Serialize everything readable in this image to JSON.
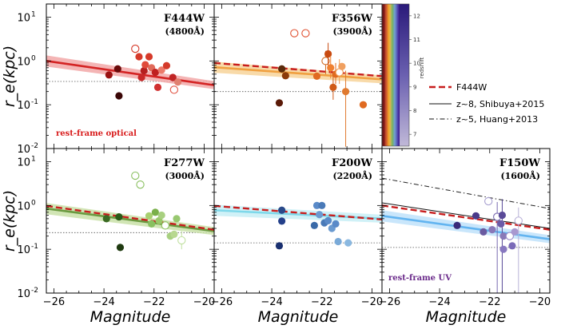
{
  "chart_data": {
    "type": "scatter",
    "xlabel": "Magnitude",
    "ylabel": "r_e(kpc)",
    "xlim": [
      -26.3,
      -19.6
    ],
    "ylim": [
      0.01,
      20
    ],
    "xticks": [
      -26,
      -24,
      -22,
      -20
    ],
    "yticks": [
      {
        "v": 10,
        "label": "10"
      },
      {
        "v": 1,
        "label": "10"
      },
      {
        "v": 0.1,
        "label": "10"
      },
      {
        "v": 0.01,
        "label": "10"
      }
    ],
    "ytick_exps": [
      "1",
      "0",
      "-1",
      "-2"
    ],
    "panels": [
      {
        "name": "F444W",
        "title": "F444W",
        "wavelength": "(4800Å)",
        "note": "rest-frame optical",
        "note_color": "#d81c1c",
        "fit": {
          "color": "#d42424",
          "band": "#f2a8a8",
          "y_at_left": 1.0,
          "y_at_right": 0.28
        },
        "ref_dotted": 0.34,
        "points": [
          {
            "x": -23.8,
            "y": 0.48,
            "c": "#9a1212"
          },
          {
            "x": -23.45,
            "y": 0.66,
            "c": "#6a0a0a"
          },
          {
            "x": -23.4,
            "y": 0.16,
            "c": "#3a0606"
          },
          {
            "x": -22.75,
            "y": 1.9,
            "c": "#d63a2a",
            "open": true
          },
          {
            "x": -22.6,
            "y": 1.25,
            "c": "#d63a2a"
          },
          {
            "x": -22.4,
            "y": 0.6,
            "c": "#b51f1f"
          },
          {
            "x": -22.35,
            "y": 0.82,
            "c": "#e04a3a"
          },
          {
            "x": -22.2,
            "y": 1.25,
            "c": "#d63a2a"
          },
          {
            "x": -22.5,
            "y": 0.42,
            "c": "#c82828"
          },
          {
            "x": -22.1,
            "y": 0.7,
            "c": "#e06a5a"
          },
          {
            "x": -21.95,
            "y": 0.55,
            "c": "#c02020"
          },
          {
            "x": -21.7,
            "y": 0.62,
            "c": "#ec7a6a"
          },
          {
            "x": -21.85,
            "y": 0.25,
            "c": "#d03030"
          },
          {
            "x": -21.5,
            "y": 0.78,
            "c": "#d43a2a"
          },
          {
            "x": -21.25,
            "y": 0.42,
            "c": "#c02424"
          },
          {
            "x": -21.2,
            "y": 0.22,
            "c": "#e05040",
            "open": true
          },
          {
            "x": -21.05,
            "y": 0.33,
            "c": "#e08070"
          }
        ]
      },
      {
        "name": "F356W",
        "title": "F356W",
        "wavelength": "(3900Å)",
        "note": "",
        "note_color": "#000000",
        "fit": {
          "color": "#f0a040",
          "band": "#f7d49a",
          "y_at_left": 0.72,
          "y_at_right": 0.38
        },
        "f444": {
          "y_at_left": 0.9,
          "y_at_right": 0.45
        },
        "ref_dotted": 0.2,
        "points": [
          {
            "x": -23.6,
            "y": 0.66,
            "c": "#5a2a0a"
          },
          {
            "x": -23.45,
            "y": 0.46,
            "c": "#8a3a0a"
          },
          {
            "x": -23.7,
            "y": 0.11,
            "c": "#5a1a08"
          },
          {
            "x": -23.1,
            "y": 4.3,
            "c": "#e05030",
            "open": true
          },
          {
            "x": -22.65,
            "y": 4.3,
            "c": "#e05030",
            "open": true
          },
          {
            "x": -22.2,
            "y": 0.45,
            "c": "#e06a20"
          },
          {
            "x": -21.85,
            "y": 1.0,
            "c": "#d06a20",
            "open": true,
            "ey": [
              0.5,
              1.7
            ]
          },
          {
            "x": -21.75,
            "y": 1.45,
            "c": "#c84a10",
            "ey": [
              0.7,
              2.6
            ]
          },
          {
            "x": -21.65,
            "y": 0.7,
            "c": "#f08030",
            "ey": [
              0.4,
              1.3
            ]
          },
          {
            "x": -21.45,
            "y": 0.5,
            "c": "#e06a20",
            "ey": [
              0.3,
              0.9
            ]
          },
          {
            "x": -21.55,
            "y": 0.25,
            "c": "#d05a18",
            "ey": [
              0.13,
              0.45
            ]
          },
          {
            "x": -21.3,
            "y": 0.55,
            "c": "#f09a50",
            "open": true,
            "ey": [
              0.3,
              1.1
            ]
          },
          {
            "x": -21.2,
            "y": 0.75,
            "c": "#f0a060"
          },
          {
            "x": -21.05,
            "y": 0.2,
            "c": "#e07a30",
            "ey": [
              0.011,
              0.6
            ]
          },
          {
            "x": -20.35,
            "y": 0.1,
            "c": "#e06a20"
          }
        ]
      },
      {
        "name": "F277W",
        "title": "F277W",
        "wavelength": "(3000Å)",
        "note": "",
        "note_color": "#000000",
        "fit": {
          "color": "#6a9a40",
          "band": "#c9e0a8",
          "y_at_left": 0.85,
          "y_at_right": 0.26
        },
        "f444": {
          "y_at_left": 0.98,
          "y_at_right": 0.28
        },
        "ref_dotted": 0.24,
        "points": [
          {
            "x": -23.9,
            "y": 0.5,
            "c": "#3a6a22"
          },
          {
            "x": -23.4,
            "y": 0.55,
            "c": "#2a5a18"
          },
          {
            "x": -23.35,
            "y": 0.11,
            "c": "#1f3a10"
          },
          {
            "x": -22.75,
            "y": 4.8,
            "c": "#8ac060",
            "open": true
          },
          {
            "x": -22.55,
            "y": 3.0,
            "c": "#8ac060",
            "open": true
          },
          {
            "x": -22.2,
            "y": 0.58,
            "c": "#a8d070"
          },
          {
            "x": -22.1,
            "y": 0.38,
            "c": "#88c060"
          },
          {
            "x": -21.95,
            "y": 0.7,
            "c": "#7ab04a"
          },
          {
            "x": -21.8,
            "y": 0.45,
            "c": "#9ac86a"
          },
          {
            "x": -21.7,
            "y": 0.6,
            "c": "#a8d080"
          },
          {
            "x": -21.55,
            "y": 0.35,
            "c": "#8ac060",
            "open": true
          },
          {
            "x": -21.35,
            "y": 0.2,
            "c": "#a8d080"
          },
          {
            "x": -21.2,
            "y": 0.22,
            "c": "#b8d890"
          },
          {
            "x": -21.1,
            "y": 0.5,
            "c": "#98c870"
          },
          {
            "x": -20.9,
            "y": 0.16,
            "c": "#c0e0a0",
            "open": true,
            "ey": [
              0.1,
              0.26
            ]
          }
        ]
      },
      {
        "name": "F200W",
        "title": "F200W",
        "wavelength": "(2200Å)",
        "note": "",
        "note_color": "#000000",
        "fit": {
          "color": "#7ed8ea",
          "band": "#c8eef6",
          "y_at_left": 0.78,
          "y_at_right": 0.5
        },
        "f444": {
          "y_at_left": 0.98,
          "y_at_right": 0.48
        },
        "ref_dotted": 0.14,
        "points": [
          {
            "x": -23.6,
            "y": 0.78,
            "c": "#2a4a8a"
          },
          {
            "x": -23.6,
            "y": 0.44,
            "c": "#24408a"
          },
          {
            "x": -23.7,
            "y": 0.12,
            "c": "#1a3070"
          },
          {
            "x": -22.2,
            "y": 1.0,
            "c": "#5a8ac8"
          },
          {
            "x": -22.0,
            "y": 1.0,
            "c": "#4a7ab8"
          },
          {
            "x": -22.1,
            "y": 0.62,
            "c": "#6a9ad0"
          },
          {
            "x": -21.9,
            "y": 0.4,
            "c": "#4a7ab8"
          },
          {
            "x": -21.75,
            "y": 0.45,
            "c": "#5a8ac8"
          },
          {
            "x": -21.6,
            "y": 0.3,
            "c": "#6a9ad0"
          },
          {
            "x": -21.45,
            "y": 0.38,
            "c": "#5a8ac8"
          },
          {
            "x": -21.35,
            "y": 0.15,
            "c": "#7aaad8"
          },
          {
            "x": -20.95,
            "y": 0.14,
            "c": "#8ab8e0"
          },
          {
            "x": -22.3,
            "y": 0.35,
            "c": "#3a6aa8"
          }
        ]
      },
      {
        "name": "F150W",
        "title": "F150W",
        "wavelength": "(1600Å)",
        "note": "rest-frame UV",
        "note_color": "#6a2a8a",
        "fit": {
          "color": "#62b4f0",
          "band": "#bfe2fa",
          "y_at_left": 0.58,
          "y_at_right": 0.17
        },
        "f444": {
          "y_at_left": 1.0,
          "y_at_right": 0.28
        },
        "shibuya": {
          "y_at_left": 1.15,
          "y_at_right": 0.3
        },
        "huang": {
          "y_at_left": 4.2,
          "y_at_right": 0.85
        },
        "ref_dotted": 0.11,
        "points": [
          {
            "x": -23.3,
            "y": 0.35,
            "c": "#3a2a7a"
          },
          {
            "x": -22.55,
            "y": 0.58,
            "c": "#4a3a8a"
          },
          {
            "x": -22.25,
            "y": 0.25,
            "c": "#6a5aa0"
          },
          {
            "x": -22.05,
            "y": 1.25,
            "c": "#a8a0d0",
            "open": true
          },
          {
            "x": -21.9,
            "y": 0.28,
            "c": "#8878b8"
          },
          {
            "x": -21.7,
            "y": 0.55,
            "c": "#7a6ab0",
            "open": true,
            "ey": [
              0.01,
              1.2
            ]
          },
          {
            "x": -21.5,
            "y": 0.6,
            "c": "#5a4a98",
            "ey": [
              0.01,
              1.4
            ]
          },
          {
            "x": -21.55,
            "y": 0.38,
            "c": "#6a5aa8"
          },
          {
            "x": -21.45,
            "y": 0.2,
            "c": "#8a7ab8"
          },
          {
            "x": -21.2,
            "y": 0.2,
            "c": "#9a8ac8",
            "open": true
          },
          {
            "x": -21.1,
            "y": 0.12,
            "c": "#7a6ab8"
          },
          {
            "x": -21.0,
            "y": 0.25,
            "c": "#a898d0"
          },
          {
            "x": -20.85,
            "y": 0.45,
            "c": "#b8b0d8",
            "open": true,
            "ey": [
              0.01,
              0.9
            ]
          },
          {
            "x": -21.45,
            "y": 0.1,
            "c": "#8878c0"
          }
        ]
      }
    ],
    "colorbar": {
      "label": "redshift",
      "min": 6.5,
      "max": 12.5,
      "ticks": [
        7,
        8,
        9,
        10,
        11,
        12
      ]
    },
    "legend": [
      {
        "label": "F444W",
        "style": "dashed-red"
      },
      {
        "label": "z~8, Shibuya+2015",
        "style": "solid-black"
      },
      {
        "label": "z~5, Huang+2013",
        "style": "dashdot-black"
      }
    ]
  }
}
